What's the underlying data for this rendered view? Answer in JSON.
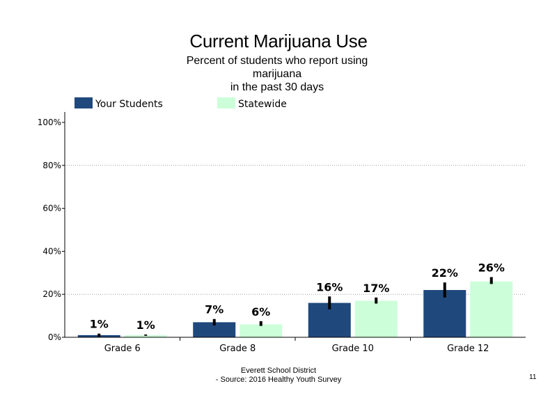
{
  "chart_data": {
    "type": "bar",
    "title": "Current Marijuana Use",
    "subtitle_lines": [
      "Percent of students who report using",
      "marijuana",
      "in the past 30 days"
    ],
    "categories": [
      "Grade 6",
      "Grade 8",
      "Grade 10",
      "Grade 12"
    ],
    "series": [
      {
        "name": "Your Students",
        "values": [
          1,
          7,
          16,
          22
        ],
        "labels": [
          "1%",
          "7%",
          "16%",
          "22%"
        ],
        "error": [
          [
            0.3,
            1.7
          ],
          [
            5.5,
            8.5
          ],
          [
            13,
            19
          ],
          [
            18.5,
            25.5
          ]
        ]
      },
      {
        "name": "Statewide",
        "values": [
          1,
          6,
          17,
          26
        ],
        "labels": [
          "1%",
          "6%",
          "17%",
          "26%"
        ],
        "error": [
          [
            0.7,
            1.3
          ],
          [
            5.3,
            7.5
          ],
          [
            15.7,
            18.5
          ],
          [
            24.8,
            28
          ]
        ]
      }
    ],
    "ylim": [
      0,
      100
    ],
    "yticks": [
      0,
      20,
      40,
      60,
      80,
      100
    ],
    "ytick_labels": [
      "0%",
      "20%",
      "40%",
      "60%",
      "80%",
      "100%"
    ],
    "grid": "dotted horizontal at 20% and 80%",
    "legend_position": "top-left",
    "colors": {
      "Your Students": "#1f497d",
      "Statewide": "#ccffd9",
      "error_bar": "#000000",
      "grid": "#999999"
    }
  },
  "footer": {
    "line1": "Everett School District",
    "line2": "- Source: 2016 Healthy  Youth Survey",
    "page_number": "11"
  }
}
